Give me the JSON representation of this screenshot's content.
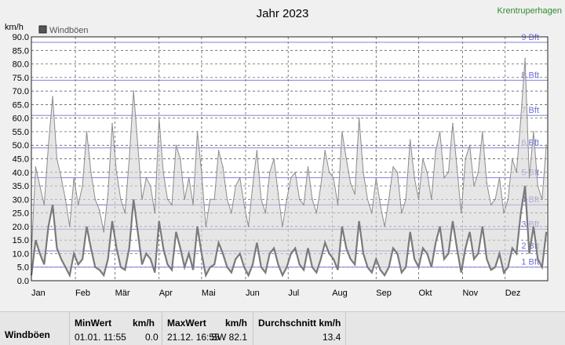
{
  "station": "Krentruperhagen",
  "colors": {
    "series": "#8c8c8c",
    "grid_dashed": "#444444",
    "bft_line": "#6f6fd8",
    "bft_label": "#6f6fd8",
    "station": "#2e8b2e",
    "plot_bg": "#ffffff"
  },
  "chart_data": {
    "type": "line",
    "title": "Jahr 2023",
    "ylabel": "km/h",
    "ylim": [
      0,
      90
    ],
    "y_ticks": [
      "0.0",
      "5.0",
      "10.0",
      "15.0",
      "20.0",
      "25.0",
      "30.0",
      "35.0",
      "40.0",
      "45.0",
      "50.0",
      "55.0",
      "60.0",
      "65.0",
      "70.0",
      "75.0",
      "80.0",
      "85.0",
      "90.0"
    ],
    "x_ticks": [
      "Jan",
      "Feb",
      "Mär",
      "Apr",
      "Mai",
      "Jun",
      "Jul",
      "Aug",
      "Sep",
      "Okt",
      "Nov",
      "Dez"
    ],
    "legend": {
      "position": "top-left",
      "entries": [
        "Windböen"
      ]
    },
    "grid": true,
    "beaufort_lines": [
      {
        "label": "1 Bft",
        "value": 5
      },
      {
        "label": "2 Bft",
        "value": 11
      },
      {
        "label": "3 Bft",
        "value": 19
      },
      {
        "label": "4 Bft",
        "value": 28
      },
      {
        "label": "5 Bft",
        "value": 38
      },
      {
        "label": "6 Bft",
        "value": 49
      },
      {
        "label": "7 Bft",
        "value": 61
      },
      {
        "label": "8 Bft",
        "value": 74
      },
      {
        "label": "9 Bft",
        "value": 88
      }
    ],
    "series": [
      {
        "name": "Windböen",
        "x_days": [
          0,
          3,
          6,
          9,
          12,
          15,
          18,
          21,
          24,
          27,
          30,
          33,
          36,
          39,
          42,
          45,
          48,
          51,
          54,
          57,
          60,
          63,
          66,
          69,
          72,
          75,
          78,
          81,
          84,
          87,
          90,
          93,
          96,
          99,
          102,
          105,
          108,
          111,
          114,
          117,
          120,
          123,
          126,
          129,
          132,
          135,
          138,
          141,
          144,
          147,
          150,
          153,
          156,
          159,
          162,
          165,
          168,
          171,
          174,
          177,
          180,
          183,
          186,
          189,
          192,
          195,
          198,
          201,
          204,
          207,
          210,
          213,
          216,
          219,
          222,
          225,
          228,
          231,
          234,
          237,
          240,
          243,
          246,
          249,
          252,
          255,
          258,
          261,
          264,
          267,
          270,
          273,
          276,
          279,
          282,
          285,
          288,
          291,
          294,
          297,
          300,
          303,
          306,
          309,
          312,
          315,
          318,
          321,
          324,
          327,
          330,
          333,
          336,
          339,
          342,
          345,
          348,
          351,
          354,
          357,
          360,
          363
        ],
        "values": [
          10,
          42,
          35,
          28,
          50,
          68,
          45,
          38,
          30,
          20,
          38,
          28,
          35,
          55,
          40,
          30,
          26,
          18,
          32,
          58,
          40,
          30,
          25,
          45,
          70,
          50,
          30,
          38,
          35,
          25,
          60,
          40,
          30,
          28,
          50,
          45,
          30,
          38,
          28,
          55,
          40,
          20,
          30,
          30,
          48,
          42,
          30,
          25,
          35,
          38,
          28,
          20,
          35,
          48,
          30,
          25,
          40,
          45,
          32,
          20,
          30,
          38,
          40,
          30,
          28,
          42,
          30,
          25,
          35,
          48,
          40,
          38,
          28,
          55,
          45,
          36,
          32,
          60,
          40,
          30,
          25,
          38,
          28,
          20,
          30,
          42,
          40,
          25,
          30,
          52,
          38,
          30,
          45,
          40,
          30,
          48,
          55,
          38,
          40,
          58,
          42,
          25,
          45,
          50,
          35,
          40,
          55,
          36,
          28,
          30,
          38,
          25,
          30,
          45,
          40,
          60,
          82,
          38,
          55,
          35,
          30,
          50
        ]
      }
    ],
    "min_series": {
      "x_days": [
        0,
        3,
        6,
        9,
        12,
        15,
        18,
        21,
        24,
        27,
        30,
        33,
        36,
        39,
        42,
        45,
        48,
        51,
        54,
        57,
        60,
        63,
        66,
        69,
        72,
        75,
        78,
        81,
        84,
        87,
        90,
        93,
        96,
        99,
        102,
        105,
        108,
        111,
        114,
        117,
        120,
        123,
        126,
        129,
        132,
        135,
        138,
        141,
        144,
        147,
        150,
        153,
        156,
        159,
        162,
        165,
        168,
        171,
        174,
        177,
        180,
        183,
        186,
        189,
        192,
        195,
        198,
        201,
        204,
        207,
        210,
        213,
        216,
        219,
        222,
        225,
        228,
        231,
        234,
        237,
        240,
        243,
        246,
        249,
        252,
        255,
        258,
        261,
        264,
        267,
        270,
        273,
        276,
        279,
        282,
        285,
        288,
        291,
        294,
        297,
        300,
        303,
        306,
        309,
        312,
        315,
        318,
        321,
        324,
        327,
        330,
        333,
        336,
        339,
        342,
        345,
        348,
        351,
        354,
        357,
        360,
        363
      ],
      "values": [
        2,
        15,
        10,
        6,
        20,
        28,
        12,
        8,
        5,
        2,
        10,
        6,
        8,
        20,
        12,
        5,
        4,
        2,
        8,
        22,
        12,
        5,
        4,
        12,
        30,
        18,
        6,
        10,
        8,
        3,
        22,
        12,
        6,
        4,
        18,
        12,
        5,
        10,
        4,
        20,
        10,
        2,
        5,
        6,
        14,
        10,
        5,
        3,
        8,
        10,
        5,
        2,
        6,
        14,
        5,
        3,
        10,
        12,
        6,
        2,
        5,
        10,
        12,
        6,
        4,
        12,
        5,
        3,
        8,
        14,
        10,
        8,
        4,
        20,
        12,
        8,
        6,
        22,
        10,
        5,
        3,
        8,
        4,
        2,
        5,
        12,
        10,
        3,
        5,
        18,
        8,
        5,
        12,
        10,
        5,
        14,
        20,
        8,
        10,
        22,
        12,
        3,
        12,
        18,
        8,
        10,
        20,
        8,
        4,
        5,
        10,
        3,
        5,
        12,
        10,
        25,
        35,
        10,
        20,
        8,
        5,
        18
      ]
    }
  },
  "stats": {
    "row_label": "Windböen",
    "min_header": "MinWert",
    "min_unit": "km/h",
    "min_time": "01.01.  11:55",
    "min_value": "0.0",
    "max_header": "MaxWert",
    "max_unit": "km/h",
    "max_time": "21.12.  16:55",
    "max_dir_value": "SW 82.1",
    "avg_header": "Durchschnitt km/h",
    "avg_value": "13.4"
  }
}
